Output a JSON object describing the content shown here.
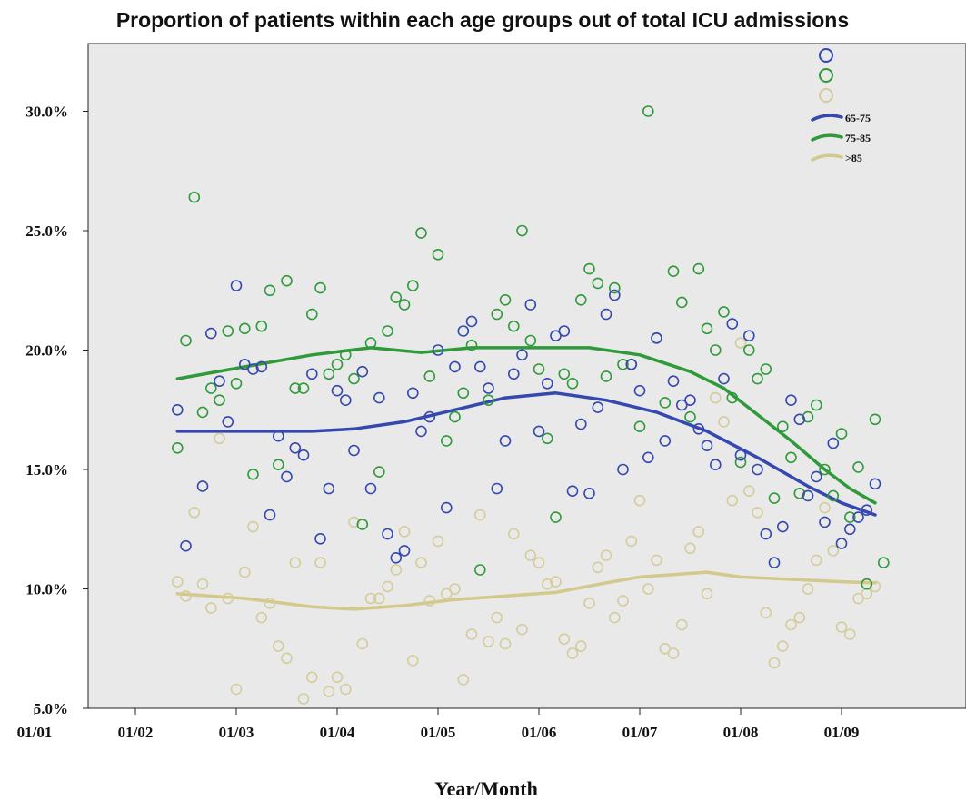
{
  "chart_data": {
    "type": "scatter",
    "title": "Proportion of patients within each age groups out of total ICU admissions",
    "xlabel": "Year/Month",
    "ylabel": "",
    "x_ticks": [
      "01/01",
      "01/02",
      "01/03",
      "01/04",
      "01/05",
      "01/06",
      "01/07",
      "01/08",
      "01/09"
    ],
    "y_ticks": [
      "5.0%",
      "10.0%",
      "15.0%",
      "20.0%",
      "25.0%",
      "30.0%"
    ],
    "xlim": [
      0,
      102
    ],
    "ylim": [
      5,
      32.5
    ],
    "x_unit_note": "months since 01/01",
    "grid": false,
    "legend_position": "top-right",
    "series": [
      {
        "name": "65-75",
        "color": "#3548b0",
        "points": [
          [
            17,
            17.5
          ],
          [
            18,
            11.8
          ],
          [
            20,
            14.3
          ],
          [
            21,
            20.7
          ],
          [
            22,
            18.7
          ],
          [
            23,
            17
          ],
          [
            24,
            22.7
          ],
          [
            25,
            19.4
          ],
          [
            26,
            19.2
          ],
          [
            27,
            19.3
          ],
          [
            28,
            13.1
          ],
          [
            29,
            16.4
          ],
          [
            30,
            14.7
          ],
          [
            31,
            15.9
          ],
          [
            32,
            15.6
          ],
          [
            33,
            19
          ],
          [
            34,
            12.1
          ],
          [
            35,
            14.2
          ],
          [
            36,
            18.3
          ],
          [
            37,
            17.9
          ],
          [
            38,
            15.8
          ],
          [
            39,
            19.1
          ],
          [
            40,
            14.2
          ],
          [
            41,
            18
          ],
          [
            42,
            12.3
          ],
          [
            43,
            11.3
          ],
          [
            44,
            11.6
          ],
          [
            45,
            18.2
          ],
          [
            46,
            16.6
          ],
          [
            47,
            17.2
          ],
          [
            48,
            20
          ],
          [
            49,
            13.4
          ],
          [
            50,
            19.3
          ],
          [
            51,
            20.8
          ],
          [
            52,
            21.2
          ],
          [
            53,
            19.3
          ],
          [
            54,
            18.4
          ],
          [
            55,
            14.2
          ],
          [
            56,
            16.2
          ],
          [
            57,
            19
          ],
          [
            58,
            19.8
          ],
          [
            59,
            21.9
          ],
          [
            60,
            16.6
          ],
          [
            61,
            18.6
          ],
          [
            62,
            20.6
          ],
          [
            63,
            20.8
          ],
          [
            64,
            14.1
          ],
          [
            65,
            16.9
          ],
          [
            66,
            14
          ],
          [
            67,
            17.6
          ],
          [
            68,
            21.5
          ],
          [
            69,
            22.3
          ],
          [
            70,
            15
          ],
          [
            71,
            19.4
          ],
          [
            72,
            18.3
          ],
          [
            73,
            15.5
          ],
          [
            74,
            20.5
          ],
          [
            75,
            16.2
          ],
          [
            76,
            18.7
          ],
          [
            77,
            17.7
          ],
          [
            78,
            17.9
          ],
          [
            79,
            16.7
          ],
          [
            80,
            16
          ],
          [
            81,
            15.2
          ],
          [
            82,
            18.8
          ],
          [
            83,
            21.1
          ],
          [
            84,
            15.6
          ],
          [
            85,
            20.6
          ],
          [
            86,
            15
          ],
          [
            87,
            12.3
          ],
          [
            88,
            11.1
          ],
          [
            89,
            12.6
          ],
          [
            90,
            17.9
          ],
          [
            91,
            17.1
          ],
          [
            92,
            13.9
          ],
          [
            93,
            14.7
          ],
          [
            94,
            12.8
          ],
          [
            95,
            16.1
          ],
          [
            96,
            11.9
          ],
          [
            97,
            12.5
          ],
          [
            98,
            13
          ],
          [
            99,
            13.3
          ],
          [
            100,
            14.4
          ]
        ]
      },
      {
        "name": "75-85",
        "color": "#2f9a3a",
        "points": [
          [
            17,
            15.9
          ],
          [
            18,
            20.4
          ],
          [
            19,
            26.4
          ],
          [
            20,
            17.4
          ],
          [
            21,
            18.4
          ],
          [
            22,
            17.9
          ],
          [
            23,
            20.8
          ],
          [
            24,
            18.6
          ],
          [
            25,
            20.9
          ],
          [
            26,
            14.8
          ],
          [
            27,
            21
          ],
          [
            28,
            22.5
          ],
          [
            29,
            15.2
          ],
          [
            30,
            22.9
          ],
          [
            31,
            18.4
          ],
          [
            32,
            18.4
          ],
          [
            33,
            21.5
          ],
          [
            34,
            22.6
          ],
          [
            35,
            19
          ],
          [
            36,
            19.4
          ],
          [
            37,
            19.8
          ],
          [
            38,
            18.8
          ],
          [
            39,
            12.7
          ],
          [
            40,
            20.3
          ],
          [
            41,
            14.9
          ],
          [
            42,
            20.8
          ],
          [
            43,
            22.2
          ],
          [
            44,
            21.9
          ],
          [
            45,
            22.7
          ],
          [
            46,
            24.9
          ],
          [
            47,
            18.9
          ],
          [
            48,
            24
          ],
          [
            49,
            16.2
          ],
          [
            50,
            17.2
          ],
          [
            51,
            18.2
          ],
          [
            52,
            20.2
          ],
          [
            53,
            10.8
          ],
          [
            54,
            17.9
          ],
          [
            55,
            21.5
          ],
          [
            56,
            22.1
          ],
          [
            57,
            21
          ],
          [
            58,
            25
          ],
          [
            59,
            20.4
          ],
          [
            60,
            19.2
          ],
          [
            61,
            16.3
          ],
          [
            62,
            13
          ],
          [
            63,
            19
          ],
          [
            64,
            18.6
          ],
          [
            65,
            22.1
          ],
          [
            66,
            23.4
          ],
          [
            67,
            22.8
          ],
          [
            68,
            18.9
          ],
          [
            69,
            22.6
          ],
          [
            70,
            19.4
          ],
          [
            71,
            19.4
          ],
          [
            72,
            16.8
          ],
          [
            73,
            30
          ],
          [
            74,
            20.5
          ],
          [
            75,
            17.8
          ],
          [
            76,
            23.3
          ],
          [
            77,
            22
          ],
          [
            78,
            17.2
          ],
          [
            79,
            23.4
          ],
          [
            80,
            20.9
          ],
          [
            81,
            20
          ],
          [
            82,
            21.6
          ],
          [
            83,
            18
          ],
          [
            84,
            15.3
          ],
          [
            85,
            20
          ],
          [
            86,
            18.8
          ],
          [
            87,
            19.2
          ],
          [
            88,
            13.8
          ],
          [
            89,
            16.8
          ],
          [
            90,
            15.5
          ],
          [
            91,
            14
          ],
          [
            92,
            17.2
          ],
          [
            93,
            17.7
          ],
          [
            94,
            15
          ],
          [
            95,
            13.9
          ],
          [
            96,
            16.5
          ],
          [
            97,
            13
          ],
          [
            98,
            15.1
          ],
          [
            99,
            10.2
          ],
          [
            100,
            17.1
          ],
          [
            101,
            11.1
          ]
        ]
      },
      {
        "name": ">85",
        "color": "#d4cc9a",
        "points": [
          [
            17,
            10.3
          ],
          [
            18,
            9.7
          ],
          [
            19,
            13.2
          ],
          [
            20,
            10.2
          ],
          [
            21,
            9.2
          ],
          [
            22,
            16.3
          ],
          [
            23,
            9.6
          ],
          [
            24,
            5.8
          ],
          [
            25,
            10.7
          ],
          [
            26,
            12.6
          ],
          [
            27,
            8.8
          ],
          [
            28,
            9.4
          ],
          [
            29,
            7.6
          ],
          [
            30,
            7.1
          ],
          [
            31,
            11.1
          ],
          [
            32,
            5.4
          ],
          [
            33,
            6.3
          ],
          [
            34,
            11.1
          ],
          [
            35,
            5.7
          ],
          [
            36,
            6.3
          ],
          [
            37,
            5.8
          ],
          [
            38,
            12.8
          ],
          [
            39,
            7.7
          ],
          [
            40,
            9.6
          ],
          [
            41,
            9.6
          ],
          [
            42,
            10.1
          ],
          [
            43,
            10.8
          ],
          [
            44,
            12.4
          ],
          [
            45,
            7
          ],
          [
            46,
            11.1
          ],
          [
            47,
            9.5
          ],
          [
            48,
            12
          ],
          [
            49,
            9.8
          ],
          [
            50,
            10
          ],
          [
            51,
            6.2
          ],
          [
            52,
            8.1
          ],
          [
            53,
            13.1
          ],
          [
            54,
            7.8
          ],
          [
            55,
            8.8
          ],
          [
            56,
            7.7
          ],
          [
            57,
            12.3
          ],
          [
            58,
            8.3
          ],
          [
            59,
            11.4
          ],
          [
            60,
            11.1
          ],
          [
            61,
            10.2
          ],
          [
            62,
            10.3
          ],
          [
            63,
            7.9
          ],
          [
            64,
            7.3
          ],
          [
            65,
            7.6
          ],
          [
            66,
            9.4
          ],
          [
            67,
            10.9
          ],
          [
            68,
            11.4
          ],
          [
            69,
            8.8
          ],
          [
            70,
            9.5
          ],
          [
            71,
            12
          ],
          [
            72,
            13.7
          ],
          [
            73,
            10
          ],
          [
            74,
            11.2
          ],
          [
            75,
            7.5
          ],
          [
            76,
            7.3
          ],
          [
            77,
            8.5
          ],
          [
            78,
            11.7
          ],
          [
            79,
            12.4
          ],
          [
            80,
            9.8
          ],
          [
            81,
            18
          ],
          [
            82,
            17
          ],
          [
            83,
            13.7
          ],
          [
            84,
            20.3
          ],
          [
            85,
            14.1
          ],
          [
            86,
            13.2
          ],
          [
            87,
            9
          ],
          [
            88,
            6.9
          ],
          [
            89,
            7.6
          ],
          [
            90,
            8.5
          ],
          [
            91,
            8.8
          ],
          [
            92,
            10
          ],
          [
            93,
            11.2
          ],
          [
            94,
            13.4
          ],
          [
            95,
            11.6
          ],
          [
            96,
            8.4
          ],
          [
            97,
            8.1
          ],
          [
            98,
            9.6
          ],
          [
            99,
            9.8
          ],
          [
            100,
            10.1
          ]
        ]
      }
    ],
    "trend_lines": [
      {
        "name": "65-75",
        "color": "#3548b0",
        "points": [
          [
            17,
            16.6
          ],
          [
            25,
            16.6
          ],
          [
            33,
            16.6
          ],
          [
            38,
            16.7
          ],
          [
            44,
            17
          ],
          [
            50,
            17.5
          ],
          [
            56,
            18
          ],
          [
            62,
            18.2
          ],
          [
            68,
            17.9
          ],
          [
            74,
            17.4
          ],
          [
            80,
            16.6
          ],
          [
            86,
            15.5
          ],
          [
            92,
            14.3
          ],
          [
            96,
            13.6
          ],
          [
            100,
            13.1
          ]
        ]
      },
      {
        "name": "75-85",
        "color": "#2f9a3a",
        "points": [
          [
            17,
            18.8
          ],
          [
            25,
            19.3
          ],
          [
            33,
            19.8
          ],
          [
            40,
            20.1
          ],
          [
            46,
            19.9
          ],
          [
            52,
            20.1
          ],
          [
            58,
            20.1
          ],
          [
            66,
            20.1
          ],
          [
            72,
            19.8
          ],
          [
            78,
            19.1
          ],
          [
            82,
            18.4
          ],
          [
            86,
            17.3
          ],
          [
            90,
            16.2
          ],
          [
            94,
            15
          ],
          [
            97,
            14.2
          ],
          [
            100,
            13.6
          ]
        ]
      },
      {
        "name": ">85",
        "color": "#d2c98a",
        "points": [
          [
            17,
            9.8
          ],
          [
            25,
            9.6
          ],
          [
            33,
            9.25
          ],
          [
            38,
            9.15
          ],
          [
            44,
            9.3
          ],
          [
            50,
            9.55
          ],
          [
            56,
            9.7
          ],
          [
            62,
            9.85
          ],
          [
            68,
            10.25
          ],
          [
            72,
            10.5
          ],
          [
            76,
            10.6
          ],
          [
            80,
            10.7
          ],
          [
            84,
            10.5
          ],
          [
            90,
            10.4
          ],
          [
            96,
            10.3
          ],
          [
            100,
            10.25
          ]
        ]
      }
    ]
  }
}
